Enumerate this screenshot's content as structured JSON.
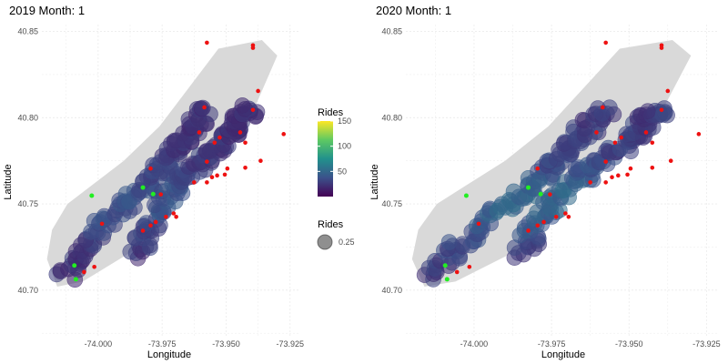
{
  "chart_data": [
    {
      "type": "scatter",
      "title": "2019 Month: 1",
      "xlabel": "Longitude",
      "ylabel": "Latitude",
      "xlim": [
        -74.022,
        -73.921
      ],
      "ylim": [
        40.673,
        40.854
      ],
      "xticks": [
        -74.0,
        -73.975,
        -73.95,
        -73.925
      ],
      "xtick_labels": [
        "-74.000",
        "-73.975",
        "-73.950",
        "-73.925"
      ],
      "yticks": [
        40.7,
        40.75,
        40.8,
        40.85
      ],
      "ytick_labels": [
        "40.70",
        "40.75",
        "40.80",
        "40.85"
      ],
      "grid": true,
      "rides_scale": "viridis",
      "uptown_ride_level": 22,
      "midtown_ride_level": 38,
      "green_stations": [
        [
          -74.0025,
          40.7548
        ],
        [
          -73.9825,
          40.7595
        ],
        [
          -73.9785,
          40.7557
        ],
        [
          -74.0093,
          40.7143
        ],
        [
          -74.0087,
          40.7063
        ]
      ],
      "red_stations": [
        [
          -73.9575,
          40.8435
        ],
        [
          -73.9395,
          40.842
        ],
        [
          -73.9395,
          40.8405
        ],
        [
          -73.9375,
          40.8155
        ],
        [
          -73.9585,
          40.806
        ],
        [
          -73.9395,
          40.8045
        ],
        [
          -73.9445,
          40.7915
        ],
        [
          -73.9605,
          40.7915
        ],
        [
          -73.9275,
          40.7905
        ],
        [
          -73.9525,
          40.7885
        ],
        [
          -73.9545,
          40.7855
        ],
        [
          -73.9425,
          40.7855
        ],
        [
          -73.9575,
          40.7745
        ],
        [
          -73.9365,
          40.775
        ],
        [
          -73.9495,
          40.7705
        ],
        [
          -73.9425,
          40.771
        ],
        [
          -73.9795,
          40.7705
        ],
        [
          -73.9505,
          40.767
        ],
        [
          -73.9535,
          40.7665
        ],
        [
          -73.9555,
          40.7655
        ],
        [
          -73.9625,
          40.7625
        ],
        [
          -73.9575,
          40.7625
        ],
        [
          -73.9755,
          40.7555
        ],
        [
          -73.9705,
          40.7445
        ],
        [
          -73.9735,
          40.7425
        ],
        [
          -73.9695,
          40.7425
        ],
        [
          -73.9775,
          40.7395
        ],
        [
          -73.9795,
          40.7375
        ],
        [
          -73.9825,
          40.7345
        ],
        [
          -73.9985,
          40.7385
        ],
        [
          -74.0055,
          40.7105
        ],
        [
          -74.0015,
          40.7135
        ]
      ]
    },
    {
      "type": "scatter",
      "title": "2020 Month: 1",
      "xlabel": "Longitude",
      "ylabel": "Latitude",
      "xlim": [
        -74.022,
        -73.921
      ],
      "ylim": [
        40.673,
        40.854
      ],
      "xticks": [
        -74.0,
        -73.975,
        -73.95,
        -73.925
      ],
      "xtick_labels": [
        "-74.000",
        "-73.975",
        "-73.950",
        "-73.925"
      ],
      "yticks": [
        40.7,
        40.75,
        40.8,
        40.85
      ],
      "ytick_labels": [
        "40.70",
        "40.75",
        "40.80",
        "40.85"
      ],
      "grid": true,
      "rides_scale": "viridis",
      "uptown_ride_level": 26,
      "midtown_ride_level": 48,
      "green_stations": [
        [
          -74.0025,
          40.7548
        ],
        [
          -73.9825,
          40.7595
        ],
        [
          -73.9785,
          40.7557
        ],
        [
          -74.0093,
          40.7143
        ],
        [
          -74.0087,
          40.7063
        ]
      ],
      "red_stations": [
        [
          -73.9575,
          40.8435
        ],
        [
          -73.9395,
          40.842
        ],
        [
          -73.9395,
          40.8405
        ],
        [
          -73.9375,
          40.8155
        ],
        [
          -73.9585,
          40.806
        ],
        [
          -73.9395,
          40.8045
        ],
        [
          -73.9445,
          40.7915
        ],
        [
          -73.9605,
          40.7915
        ],
        [
          -73.9275,
          40.7905
        ],
        [
          -73.9525,
          40.7885
        ],
        [
          -73.9545,
          40.7855
        ],
        [
          -73.9425,
          40.7855
        ],
        [
          -73.9575,
          40.7745
        ],
        [
          -73.9365,
          40.775
        ],
        [
          -73.9495,
          40.7705
        ],
        [
          -73.9425,
          40.771
        ],
        [
          -73.9795,
          40.7705
        ],
        [
          -73.9505,
          40.767
        ],
        [
          -73.9535,
          40.7665
        ],
        [
          -73.9555,
          40.7655
        ],
        [
          -73.9625,
          40.7625
        ],
        [
          -73.9575,
          40.7625
        ],
        [
          -73.9755,
          40.7555
        ],
        [
          -73.9705,
          40.7445
        ],
        [
          -73.9735,
          40.7425
        ],
        [
          -73.9695,
          40.7425
        ],
        [
          -73.9775,
          40.7395
        ],
        [
          -73.9795,
          40.7375
        ],
        [
          -73.9825,
          40.7345
        ],
        [
          -73.9985,
          40.7385
        ],
        [
          -74.0055,
          40.7105
        ],
        [
          -74.0015,
          40.7135
        ]
      ]
    }
  ],
  "legend": {
    "color_title": "Rides",
    "color_range": [
      0,
      150
    ],
    "color_ticks": [
      50,
      100,
      150
    ],
    "color_tick_labels": [
      "50",
      "100",
      "150"
    ],
    "size_title": "Rides",
    "size_label": "0.25"
  },
  "colors": {
    "manhattan_fill": "#d9d9d9",
    "station_green": "#22ee22",
    "station_red": "#ee1111",
    "grid": "#ebebeb"
  }
}
